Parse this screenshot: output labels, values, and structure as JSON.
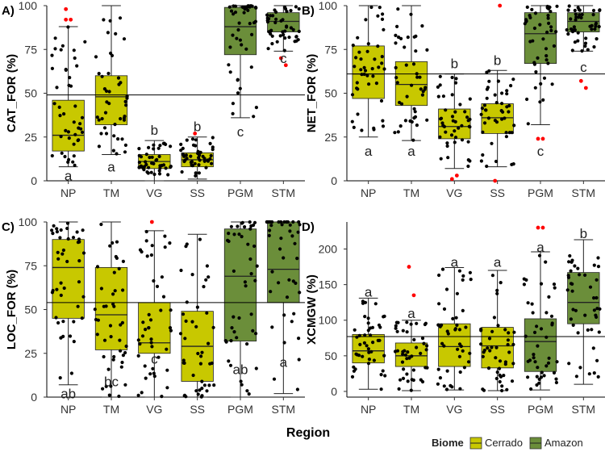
{
  "figure": {
    "xlabel": "Region",
    "legend": {
      "title": "Biome",
      "entries": [
        {
          "label": "Cerrado",
          "color": "#c8c800"
        },
        {
          "label": "Amazon",
          "color": "#6b8e3a"
        }
      ],
      "placement": "bottom-right"
    }
  },
  "chart_data": [
    {
      "panel": "A)",
      "type": "boxplot",
      "ylabel": "CAT_FOR (%)",
      "ylim": [
        0,
        100
      ],
      "yticks": [
        0,
        25,
        50,
        75,
        100
      ],
      "hline": 49,
      "categories": [
        "NP",
        "TM",
        "VG",
        "SS",
        "PGM",
        "STM"
      ],
      "boxes": [
        {
          "cat": "NP",
          "biome": "Cerrado",
          "q1": 17,
          "median": 26,
          "q3": 46,
          "wlo": 8,
          "whi": 88,
          "letter": "a",
          "letter_y": 3,
          "outliers": [
            98,
            92,
            92
          ]
        },
        {
          "cat": "TM",
          "biome": "Cerrado",
          "q1": 32,
          "median": 48,
          "q3": 60,
          "wlo": 15,
          "whi": 100,
          "letter": "a",
          "letter_y": 8,
          "outliers": []
        },
        {
          "cat": "VG",
          "biome": "Cerrado",
          "q1": 7,
          "median": 11,
          "q3": 15,
          "wlo": 0,
          "whi": 23,
          "letter": "b",
          "letter_y": 29,
          "outliers": []
        },
        {
          "cat": "SS",
          "biome": "Cerrado",
          "q1": 8,
          "median": 12,
          "q3": 16,
          "wlo": 1,
          "whi": 25,
          "letter": "b",
          "letter_y": 31,
          "outliers": [
            27
          ]
        },
        {
          "cat": "PGM",
          "biome": "Amazon",
          "q1": 72,
          "median": 88,
          "q3": 99,
          "wlo": 36,
          "whi": 100,
          "letter": "c",
          "letter_y": 28,
          "outliers": []
        },
        {
          "cat": "STM",
          "biome": "Amazon",
          "q1": 85,
          "median": 91,
          "q3": 96,
          "wlo": 74,
          "whi": 100,
          "letter": "c",
          "letter_y": 70,
          "outliers": [
            70,
            66
          ]
        }
      ]
    },
    {
      "panel": "B)",
      "type": "boxplot",
      "ylabel": "NET_FOR (%)",
      "ylim": [
        0,
        100
      ],
      "yticks": [
        0,
        25,
        50,
        75,
        100
      ],
      "hline": 61,
      "categories": [
        "NP",
        "TM",
        "VG",
        "SS",
        "PGM",
        "STM"
      ],
      "boxes": [
        {
          "cat": "NP",
          "biome": "Cerrado",
          "q1": 47,
          "median": 61,
          "q3": 77,
          "wlo": 25,
          "whi": 100,
          "letter": "a",
          "letter_y": 17,
          "outliers": []
        },
        {
          "cat": "TM",
          "biome": "Cerrado",
          "q1": 43,
          "median": 55,
          "q3": 68,
          "wlo": 23,
          "whi": 100,
          "letter": "a",
          "letter_y": 17,
          "outliers": []
        },
        {
          "cat": "VG",
          "biome": "Cerrado",
          "q1": 24,
          "median": 31,
          "q3": 41,
          "wlo": 7,
          "whi": 61,
          "letter": "b",
          "letter_y": 67,
          "outliers": [
            1,
            3
          ]
        },
        {
          "cat": "SS",
          "biome": "Cerrado",
          "q1": 27,
          "median": 36,
          "q3": 44,
          "wlo": 8,
          "whi": 63,
          "letter": "b",
          "letter_y": 69,
          "outliers": [
            0,
            100
          ]
        },
        {
          "cat": "PGM",
          "biome": "Amazon",
          "q1": 67,
          "median": 84,
          "q3": 96,
          "wlo": 32,
          "whi": 100,
          "letter": "c",
          "letter_y": 17,
          "outliers": [
            24,
            24
          ]
        },
        {
          "cat": "STM",
          "biome": "Amazon",
          "q1": 85,
          "median": 91,
          "q3": 96,
          "wlo": 74,
          "whi": 100,
          "letter": "c",
          "letter_y": 65,
          "outliers": [
            57,
            53
          ]
        }
      ]
    },
    {
      "panel": "C)",
      "type": "boxplot",
      "ylabel": "LOC_FOR (%)",
      "ylim": [
        0,
        100
      ],
      "yticks": [
        0,
        25,
        50,
        75,
        100
      ],
      "hline": 54,
      "categories": [
        "NP",
        "TM",
        "VG",
        "SS",
        "PGM",
        "STM"
      ],
      "boxes": [
        {
          "cat": "NP",
          "biome": "Cerrado",
          "q1": 45,
          "median": 74,
          "q3": 90,
          "wlo": 7,
          "whi": 100,
          "letter": "ab",
          "letter_y": 2,
          "outliers": []
        },
        {
          "cat": "TM",
          "biome": "Cerrado",
          "q1": 27,
          "median": 47,
          "q3": 74,
          "wlo": 0,
          "whi": 100,
          "letter": "bc",
          "letter_y": 9,
          "outliers": []
        },
        {
          "cat": "VG",
          "biome": "Cerrado",
          "q1": 25,
          "median": 31,
          "q3": 54,
          "wlo": 0,
          "whi": 95,
          "letter": "c",
          "letter_y": 22,
          "outliers": [
            100
          ]
        },
        {
          "cat": "SS",
          "biome": "Cerrado",
          "q1": 9,
          "median": 29,
          "q3": 49,
          "wlo": 0,
          "whi": 93,
          "letter": "",
          "letter_y": 0,
          "outliers": []
        },
        {
          "cat": "PGM",
          "biome": "Amazon",
          "q1": 32,
          "median": 69,
          "q3": 96,
          "wlo": 0,
          "whi": 100,
          "letter": "ab",
          "letter_y": 16,
          "outliers": []
        },
        {
          "cat": "STM",
          "biome": "Amazon",
          "q1": 54,
          "median": 73,
          "q3": 100,
          "wlo": 2,
          "whi": 100,
          "letter": "a",
          "letter_y": 20,
          "outliers": []
        }
      ]
    },
    {
      "panel": "D)",
      "type": "boxplot",
      "ylabel": "XCMGW (%)",
      "ylim": [
        -8,
        238
      ],
      "yticks": [
        0,
        50,
        100,
        150,
        200
      ],
      "hline": 77,
      "categories": [
        "NP",
        "TM",
        "VG",
        "SS",
        "PGM",
        "STM"
      ],
      "boxes": [
        {
          "cat": "NP",
          "biome": "Cerrado",
          "q1": 40,
          "median": 57,
          "q3": 80,
          "wlo": 3,
          "whi": 131,
          "letter": "a",
          "letter_y": 140,
          "outliers": []
        },
        {
          "cat": "TM",
          "biome": "Cerrado",
          "q1": 35,
          "median": 50,
          "q3": 68,
          "wlo": 1,
          "whi": 100,
          "letter": "a",
          "letter_y": 110,
          "outliers": [
            175,
            135
          ]
        },
        {
          "cat": "VG",
          "biome": "Cerrado",
          "q1": 35,
          "median": 63,
          "q3": 95,
          "wlo": 2,
          "whi": 174,
          "letter": "a",
          "letter_y": 182,
          "outliers": []
        },
        {
          "cat": "SS",
          "biome": "Cerrado",
          "q1": 33,
          "median": 64,
          "q3": 90,
          "wlo": 1,
          "whi": 170,
          "letter": "a",
          "letter_y": 182,
          "outliers": []
        },
        {
          "cat": "PGM",
          "biome": "Amazon",
          "q1": 28,
          "median": 70,
          "q3": 102,
          "wlo": 2,
          "whi": 196,
          "letter": "a",
          "letter_y": 203,
          "outliers": [
            230,
            230
          ]
        },
        {
          "cat": "STM",
          "biome": "Amazon",
          "q1": 95,
          "median": 125,
          "q3": 167,
          "wlo": 10,
          "whi": 213,
          "letter": "b",
          "letter_y": 222,
          "outliers": []
        }
      ]
    }
  ]
}
